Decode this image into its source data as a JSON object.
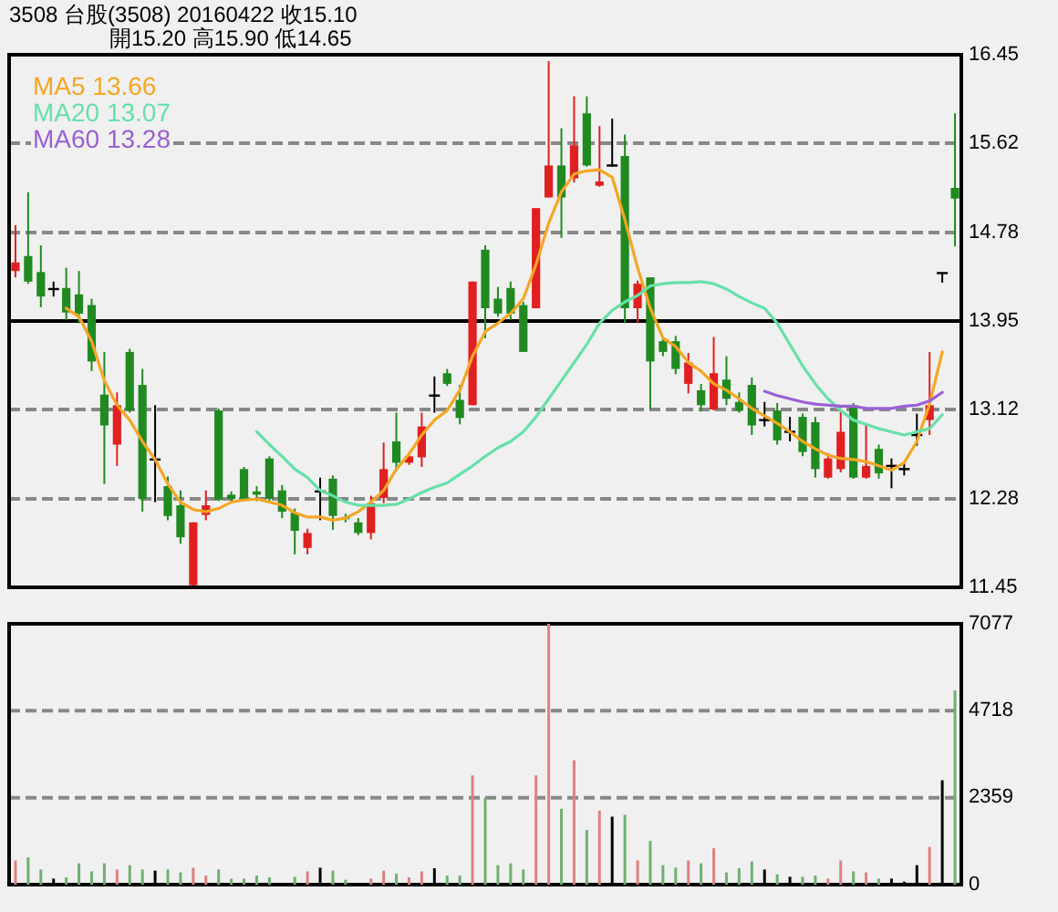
{
  "chart_data": [
    {
      "type": "candlestick",
      "title": "3508  台股(3508) 20160422    收15.10",
      "subtitle": "開15.20    高15.90    低14.65",
      "categories": [
        null,
        null,
        null,
        null,
        null,
        null,
        null,
        null,
        null,
        null,
        null,
        null,
        null,
        null,
        null,
        null,
        null,
        null,
        null,
        null,
        null,
        null,
        null,
        null,
        null,
        null,
        null,
        null,
        null,
        null,
        null,
        null,
        null,
        null,
        null,
        null,
        null,
        null,
        null,
        null,
        null,
        null,
        null,
        null,
        null,
        null,
        null,
        null,
        null,
        null,
        null,
        null,
        null,
        null,
        null,
        null,
        null,
        null,
        null,
        null,
        null,
        null,
        null,
        null,
        null,
        null,
        null,
        null,
        null,
        null,
        null,
        null,
        null,
        null,
        null
      ],
      "ohlc": [
        [
          14.42,
          14.85,
          14.36,
          14.5
        ],
        [
          14.56,
          15.16,
          14.3,
          14.32
        ],
        [
          14.41,
          14.66,
          14.08,
          14.18
        ],
        [
          14.25,
          14.32,
          14.18,
          14.25
        ],
        [
          14.26,
          14.45,
          13.96,
          14.03
        ],
        [
          14.2,
          14.42,
          13.93,
          14.02
        ],
        [
          14.1,
          14.16,
          13.48,
          13.57
        ],
        [
          13.26,
          13.66,
          12.42,
          12.97
        ],
        [
          12.79,
          13.28,
          12.59,
          13.16
        ],
        [
          13.66,
          13.69,
          13.09,
          13.11
        ],
        [
          13.35,
          13.5,
          12.16,
          12.28
        ],
        [
          12.65,
          13.16,
          12.25,
          12.65
        ],
        [
          12.4,
          12.49,
          12.08,
          12.12
        ],
        [
          12.22,
          12.36,
          11.86,
          11.92
        ],
        [
          11.47,
          12.06,
          11.45,
          12.06
        ],
        [
          12.13,
          12.36,
          12.08,
          12.22
        ],
        [
          13.11,
          13.13,
          12.26,
          12.27
        ],
        [
          12.32,
          12.35,
          12.26,
          12.28
        ],
        [
          12.56,
          12.58,
          12.26,
          12.28
        ],
        [
          12.35,
          12.4,
          12.26,
          12.32
        ],
        [
          12.66,
          12.68,
          12.26,
          12.28
        ],
        [
          12.36,
          12.41,
          12.1,
          12.16
        ],
        [
          12.15,
          12.19,
          11.76,
          11.98
        ],
        [
          11.82,
          12.0,
          11.76,
          11.96
        ],
        [
          12.35,
          12.48,
          12.08,
          12.35
        ],
        [
          12.47,
          12.5,
          11.99,
          12.12
        ],
        [
          12.11,
          12.14,
          12.06,
          12.09
        ],
        [
          12.06,
          12.1,
          11.94,
          11.96
        ],
        [
          11.96,
          12.31,
          11.9,
          12.24
        ],
        [
          12.29,
          12.81,
          12.24,
          12.56
        ],
        [
          12.82,
          13.09,
          12.55,
          12.62
        ],
        [
          12.62,
          12.72,
          12.6,
          12.68
        ],
        [
          12.67,
          13.09,
          12.58,
          12.96
        ],
        [
          13.25,
          13.43,
          13.09,
          13.25
        ],
        [
          13.46,
          13.5,
          13.34,
          13.36
        ],
        [
          13.21,
          13.35,
          12.98,
          13.04
        ],
        [
          13.16,
          14.32,
          13.16,
          14.32
        ],
        [
          14.62,
          14.66,
          13.79,
          14.07
        ],
        [
          14.16,
          14.27,
          13.99,
          14.02
        ],
        [
          14.26,
          14.32,
          13.96,
          14.02
        ],
        [
          14.1,
          14.13,
          13.66,
          13.66
        ],
        [
          14.07,
          15.01,
          14.07,
          15.01
        ],
        [
          15.11,
          16.39,
          15.11,
          15.41
        ],
        [
          15.41,
          15.76,
          14.73,
          15.11
        ],
        [
          15.29,
          16.06,
          15.25,
          15.6
        ],
        [
          15.9,
          16.06,
          15.4,
          15.41
        ],
        [
          15.22,
          15.78,
          15.21,
          15.26
        ],
        [
          15.41,
          15.85,
          15.4,
          15.41
        ],
        [
          15.5,
          15.7,
          13.93,
          14.07
        ],
        [
          14.07,
          14.33,
          13.93,
          14.3
        ],
        [
          14.36,
          14.36,
          13.12,
          13.57
        ],
        [
          13.76,
          13.8,
          13.62,
          13.66
        ],
        [
          13.76,
          13.81,
          13.45,
          13.5
        ],
        [
          13.36,
          13.65,
          13.27,
          13.56
        ],
        [
          13.3,
          13.36,
          13.1,
          13.16
        ],
        [
          13.12,
          13.8,
          13.11,
          13.46
        ],
        [
          13.4,
          13.62,
          13.16,
          13.22
        ],
        [
          13.19,
          13.28,
          13.09,
          13.11
        ],
        [
          13.35,
          13.42,
          12.88,
          12.97
        ],
        [
          13.02,
          13.19,
          12.96,
          13.02
        ],
        [
          13.11,
          13.18,
          12.79,
          12.83
        ],
        [
          12.91,
          13.05,
          12.82,
          12.91
        ],
        [
          13.05,
          13.08,
          12.68,
          12.72
        ],
        [
          13.0,
          13.05,
          12.48,
          12.56
        ],
        [
          12.48,
          12.71,
          12.47,
          12.66
        ],
        [
          12.56,
          13.11,
          12.53,
          12.91
        ],
        [
          13.16,
          13.18,
          12.47,
          12.48
        ],
        [
          12.48,
          12.98,
          12.47,
          12.59
        ],
        [
          12.75,
          12.79,
          12.47,
          12.52
        ],
        [
          12.59,
          12.66,
          12.38,
          12.59
        ],
        [
          12.56,
          12.62,
          12.5,
          12.56
        ],
        [
          12.88,
          13.08,
          12.78,
          12.88
        ],
        [
          13.02,
          13.66,
          12.88,
          13.16
        ],
        [
          14.4,
          14.4,
          14.31,
          14.4
        ],
        [
          15.2,
          15.9,
          14.65,
          15.1
        ]
      ],
      "colors": [
        "#e02020",
        "#208a20",
        "#208a20",
        "#000000",
        "#208a20",
        "#208a20",
        "#208a20",
        "#208a20",
        "#e02020",
        "#208a20",
        "#208a20",
        "#000000",
        "#208a20",
        "#208a20",
        "#e02020",
        "#e02020",
        "#208a20",
        "#208a20",
        "#208a20",
        "#208a20",
        "#208a20",
        "#208a20",
        "#208a20",
        "#e02020",
        "#000000",
        "#208a20",
        "#208a20",
        "#208a20",
        "#e02020",
        "#e02020",
        "#208a20",
        "#e02020",
        "#e02020",
        "#000000",
        "#208a20",
        "#208a20",
        "#e02020",
        "#208a20",
        "#208a20",
        "#208a20",
        "#208a20",
        "#e02020",
        "#e02020",
        "#208a20",
        "#e02020",
        "#208a20",
        "#e02020",
        "#000000",
        "#208a20",
        "#e02020",
        "#208a20",
        "#208a20",
        "#208a20",
        "#e02020",
        "#208a20",
        "#e02020",
        "#208a20",
        "#208a20",
        "#208a20",
        "#000000",
        "#208a20",
        "#000000",
        "#208a20",
        "#208a20",
        "#e02020",
        "#e02020",
        "#208a20",
        "#e02020",
        "#208a20",
        "#000000",
        "#000000",
        "#000000",
        "#e02020",
        "#000000",
        "#208a20"
      ],
      "series": [
        {
          "type": "line",
          "name": "MA5 13.66",
          "color": "#f5a623",
          "values": [
            null,
            null,
            null,
            null,
            14.07,
            13.99,
            13.76,
            13.39,
            13.16,
            13.02,
            12.82,
            12.65,
            12.42,
            12.25,
            12.18,
            12.16,
            12.19,
            12.25,
            12.27,
            12.28,
            12.25,
            12.22,
            12.15,
            12.11,
            12.11,
            12.08,
            12.1,
            12.16,
            12.25,
            12.36,
            12.56,
            12.7,
            12.88,
            13.02,
            13.11,
            13.3,
            13.62,
            13.85,
            13.93,
            14.02,
            14.16,
            14.48,
            14.87,
            15.16,
            15.33,
            15.36,
            15.37,
            15.3,
            14.9,
            14.45,
            14.07,
            13.79,
            13.71,
            13.56,
            13.48,
            13.36,
            13.3,
            13.22,
            13.13,
            13.06,
            12.99,
            12.91,
            12.82,
            12.75,
            12.69,
            12.66,
            12.65,
            12.63,
            12.59,
            12.55,
            12.62,
            12.82,
            13.17,
            13.66,
            null
          ]
        },
        {
          "type": "line",
          "name": "MA20 13.07",
          "color": "#66e0a8",
          "values": [
            null,
            null,
            null,
            null,
            null,
            null,
            null,
            null,
            null,
            null,
            null,
            null,
            null,
            null,
            null,
            null,
            null,
            null,
            null,
            12.91,
            12.79,
            12.68,
            12.56,
            12.48,
            12.36,
            12.31,
            12.25,
            12.22,
            12.22,
            12.22,
            12.23,
            12.28,
            12.34,
            12.39,
            12.43,
            12.51,
            12.59,
            12.68,
            12.76,
            12.82,
            12.91,
            13.05,
            13.22,
            13.39,
            13.56,
            13.73,
            13.93,
            14.05,
            14.13,
            14.19,
            14.28,
            14.3,
            14.31,
            14.31,
            14.32,
            14.3,
            14.25,
            14.18,
            14.12,
            14.07,
            13.93,
            13.73,
            13.53,
            13.36,
            13.22,
            13.11,
            13.02,
            12.98,
            12.94,
            12.91,
            12.88,
            12.91,
            12.94,
            13.07,
            null
          ]
        },
        {
          "type": "line",
          "name": "MA60 13.28",
          "color": "#9b5fd6",
          "values": [
            null,
            null,
            null,
            null,
            null,
            null,
            null,
            null,
            null,
            null,
            null,
            null,
            null,
            null,
            null,
            null,
            null,
            null,
            null,
            null,
            null,
            null,
            null,
            null,
            null,
            null,
            null,
            null,
            null,
            null,
            null,
            null,
            null,
            null,
            null,
            null,
            null,
            null,
            null,
            null,
            null,
            null,
            null,
            null,
            null,
            null,
            null,
            null,
            null,
            null,
            null,
            null,
            null,
            null,
            null,
            null,
            null,
            null,
            null,
            13.29,
            13.25,
            13.22,
            13.19,
            13.17,
            13.16,
            13.15,
            13.15,
            13.13,
            13.13,
            13.13,
            13.15,
            13.16,
            13.2,
            13.28,
            null
          ]
        }
      ],
      "ylim": [
        11.45,
        16.45
      ],
      "yticks": [
        11.45,
        12.28,
        13.12,
        13.95,
        14.78,
        15.62,
        16.45
      ],
      "grid": "y",
      "legend": "top left",
      "tick_labels": "y",
      "ref_lines": [
        {
          "axis": "y",
          "value": 13.95,
          "color": "#000000"
        }
      ]
    },
    {
      "type": "bar",
      "categories": [
        null,
        null,
        null,
        null,
        null,
        null,
        null,
        null,
        null,
        null,
        null,
        null,
        null,
        null,
        null,
        null,
        null,
        null,
        null,
        null,
        null,
        null,
        null,
        null,
        null,
        null,
        null,
        null,
        null,
        null,
        null,
        null,
        null,
        null,
        null,
        null,
        null,
        null,
        null,
        null,
        null,
        null,
        null,
        null,
        null,
        null,
        null,
        null,
        null,
        null,
        null,
        null,
        null,
        null,
        null,
        null,
        null,
        null,
        null,
        null,
        null,
        null,
        null,
        null,
        null,
        null,
        null,
        null,
        null,
        null,
        null,
        null,
        null,
        null,
        null
      ],
      "values": [
        657,
        741,
        410,
        163,
        198,
        578,
        361,
        578,
        410,
        529,
        410,
        380,
        410,
        331,
        459,
        247,
        410,
        163,
        163,
        247,
        198,
        null,
        214,
        361,
        459,
        380,
        132,
        null,
        163,
        380,
        296,
        198,
        361,
        445,
        247,
        247,
        2964,
        2356,
        529,
        578,
        410,
        2964,
        7077,
        2059,
        3375,
        1482,
        2009,
        1844,
        1894,
        657,
        1186,
        529,
        459,
        657,
        578,
        988,
        331,
        445,
        626,
        410,
        280,
        214,
        214,
        247,
        163,
        657,
        361,
        331,
        163,
        163,
        82,
        529,
        1021,
        2832,
        5270
      ],
      "colors": [
        "#e08080",
        "#70b070",
        "#70b070",
        "#000000",
        "#70b070",
        "#70b070",
        "#70b070",
        "#70b070",
        "#e08080",
        "#70b070",
        "#70b070",
        "#000000",
        "#70b070",
        "#70b070",
        "#e08080",
        "#e08080",
        "#70b070",
        "#70b070",
        "#70b070",
        "#70b070",
        "#70b070",
        null,
        "#70b070",
        "#e08080",
        "#000000",
        "#70b070",
        "#70b070",
        null,
        "#e08080",
        "#e08080",
        "#70b070",
        "#e08080",
        "#e08080",
        "#000000",
        "#70b070",
        "#70b070",
        "#e08080",
        "#70b070",
        "#70b070",
        "#70b070",
        "#70b070",
        "#e08080",
        "#e08080",
        "#70b070",
        "#e08080",
        "#70b070",
        "#e08080",
        "#000000",
        "#70b070",
        "#e08080",
        "#70b070",
        "#70b070",
        "#70b070",
        "#e08080",
        "#70b070",
        "#e08080",
        "#70b070",
        "#70b070",
        "#70b070",
        "#000000",
        "#70b070",
        "#000000",
        "#70b070",
        "#70b070",
        "#e08080",
        "#e08080",
        "#70b070",
        "#e08080",
        "#70b070",
        "#000000",
        "#000000",
        "#000000",
        "#e08080",
        "#000000",
        "#70b070"
      ],
      "ylim": [
        0,
        7077
      ],
      "yticks": [
        0,
        2359,
        4718,
        7077
      ],
      "grid": "y",
      "tick_labels": "y"
    }
  ]
}
